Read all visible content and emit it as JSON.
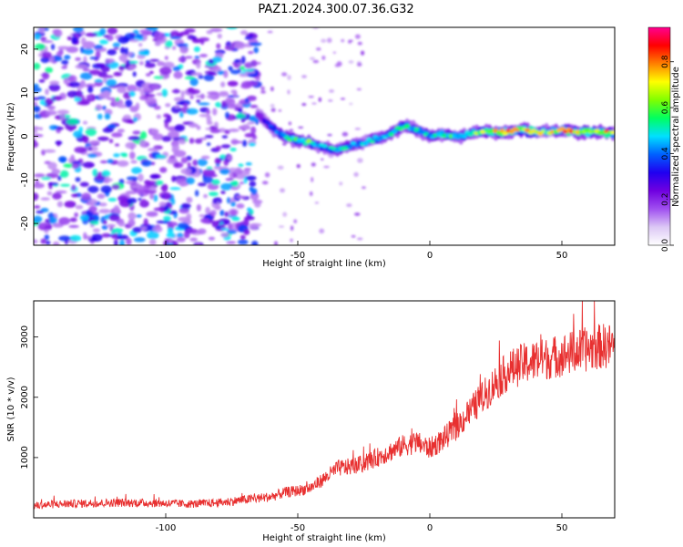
{
  "title": "PAZ1.2024.300.07.36.G32",
  "chart_data": [
    {
      "type": "heatmap",
      "xlabel": "Height of straight line (km)",
      "ylabel": "Frequency (Hz)",
      "xlim": [
        -150,
        70
      ],
      "ylim": [
        -25,
        25
      ],
      "xticks": [
        -100,
        -50,
        0,
        50
      ],
      "yticks": [
        -20,
        -10,
        0,
        10,
        20
      ],
      "grid": false,
      "colorbar": {
        "label": "Normalized spectral amplitude",
        "range": [
          0,
          0.95
        ],
        "ticks": [
          0.0,
          0.2,
          0.4,
          0.6,
          0.8
        ],
        "colormap": [
          "#ffffff",
          "#dcc8f5",
          "#a050f0",
          "#7000e0",
          "#2000f0",
          "#0060ff",
          "#00e0ff",
          "#00ff60",
          "#80ff00",
          "#ffff00",
          "#ff8000",
          "#ff0000",
          "#ff0090"
        ]
      },
      "noise_region": {
        "x_from": -150,
        "x_to": -65,
        "freq_from": -25,
        "freq_to": 25
      },
      "ridge": {
        "description_x": [
          -65,
          -60,
          -55,
          -50,
          -45,
          -40,
          -35,
          -30,
          -25,
          -20,
          -15,
          -10,
          -5,
          0,
          5,
          10,
          15,
          20,
          25,
          30,
          35,
          40,
          45,
          50,
          55,
          60,
          65,
          70
        ],
        "freq": [
          5,
          2,
          0,
          -1,
          -1.5,
          -2.5,
          -3,
          -2,
          -1.5,
          -0.5,
          0.5,
          2.5,
          1.5,
          0,
          0.5,
          0,
          0.5,
          1,
          1,
          1,
          1.5,
          1,
          1,
          1.5,
          1,
          1,
          1,
          0.5
        ],
        "amplitude": [
          0.25,
          0.4,
          0.5,
          0.6,
          0.65,
          0.45,
          0.5,
          0.5,
          0.45,
          0.5,
          0.5,
          0.55,
          0.55,
          0.5,
          0.6,
          0.55,
          0.6,
          0.65,
          0.75,
          0.8,
          0.75,
          0.7,
          0.65,
          0.8,
          0.8,
          0.75,
          0.8,
          0.7
        ]
      }
    },
    {
      "type": "line",
      "xlabel": "Height of straight line (km)",
      "ylabel": "SNR (10 * v/v)",
      "xlim": [
        -150,
        70
      ],
      "ylim": [
        0,
        3600
      ],
      "xticks": [
        -100,
        -50,
        0,
        50
      ],
      "yticks": [
        1000,
        2000,
        3000
      ],
      "grid": false,
      "series": [
        {
          "color": "#e83030",
          "x": [
            -150,
            -140,
            -130,
            -120,
            -110,
            -100,
            -90,
            -80,
            -70,
            -60,
            -55,
            -50,
            -45,
            -40,
            -35,
            -30,
            -25,
            -20,
            -15,
            -10,
            -5,
            0,
            5,
            10,
            15,
            20,
            25,
            30,
            35,
            40,
            45,
            50,
            55,
            60,
            65,
            70
          ],
          "values": [
            200,
            230,
            240,
            250,
            250,
            240,
            230,
            250,
            300,
            350,
            420,
            450,
            500,
            650,
            820,
            850,
            900,
            1000,
            1100,
            1200,
            1250,
            1150,
            1300,
            1500,
            1750,
            2000,
            2250,
            2450,
            2550,
            2600,
            2650,
            2700,
            2750,
            2800,
            2850,
            2850
          ]
        }
      ]
    }
  ]
}
